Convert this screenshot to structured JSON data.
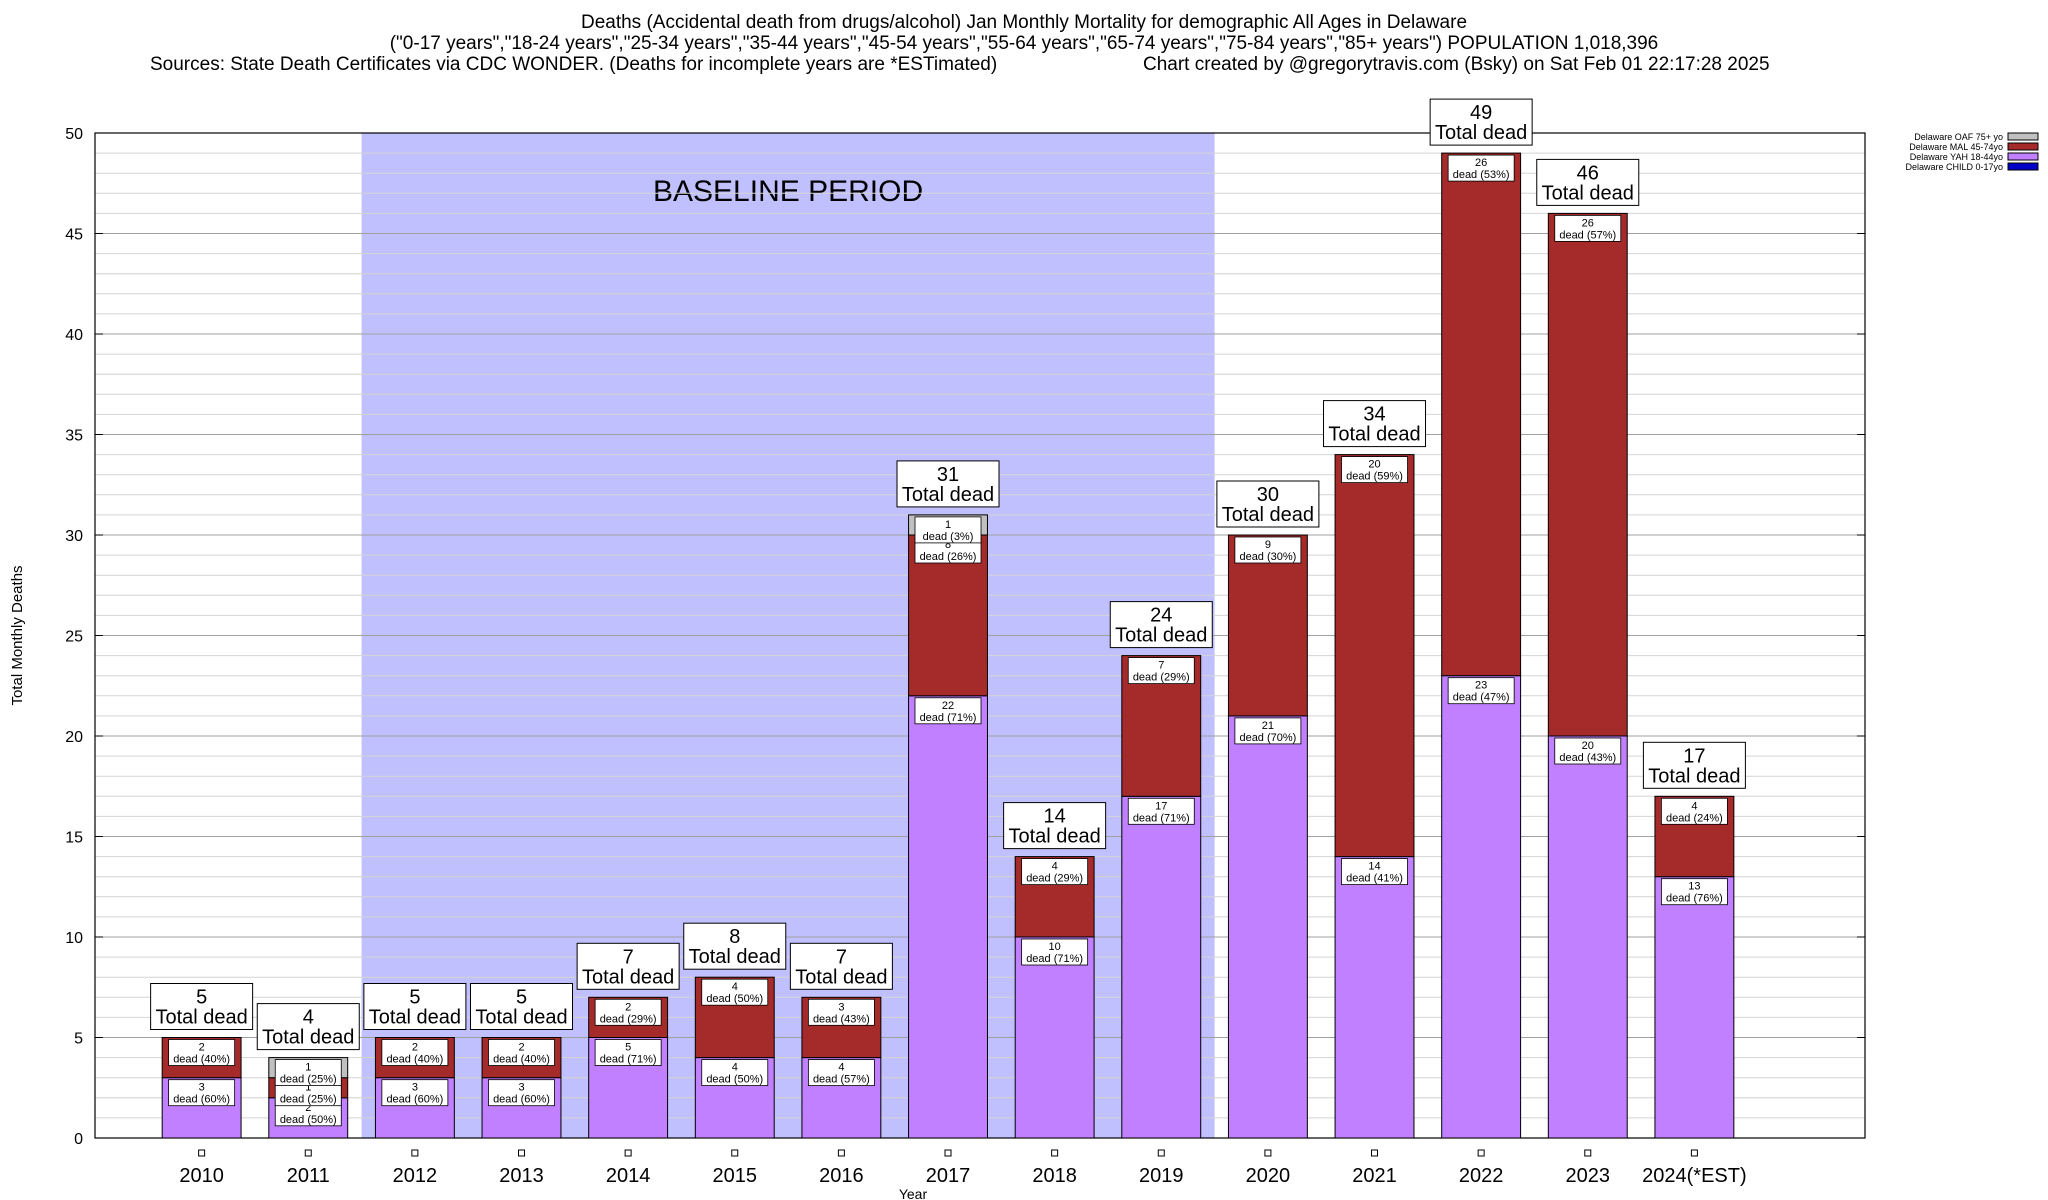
{
  "header": {
    "title_line1": "Deaths (Accidental death from drugs/alcohol) Jan Monthly Mortality for demographic All Ages in Delaware",
    "title_line2": "(\"0-17 years\",\"18-24 years\",\"25-34 years\",\"35-44 years\",\"45-54 years\",\"55-64 years\",\"65-74 years\",\"75-84 years\",\"85+ years\") POPULATION 1,018,396",
    "sources": "Sources: State Death Certificates via CDC WONDER. (Deaths for incomplete years are *ESTimated)",
    "credit": "Chart created by @gregorytravis.com (Bsky) on Sat Feb 01 22:17:28 2025"
  },
  "chart_data": {
    "type": "bar",
    "stacked": true,
    "title": "Deaths (Accidental death from drugs/alcohol) Jan Monthly Mortality for demographic All Ages in Delaware",
    "xlabel": "Year",
    "ylabel": "Total Monthly Deaths",
    "ylim": [
      0,
      50
    ],
    "yticks": [
      0,
      5,
      10,
      15,
      20,
      25,
      30,
      35,
      40,
      45,
      50
    ],
    "grid": true,
    "legend_placement": "top-right",
    "categories": [
      "2010",
      "2011",
      "2012",
      "2013",
      "2014",
      "2015",
      "2016",
      "2017",
      "2018",
      "2019",
      "2020",
      "2021",
      "2022",
      "2023",
      "2024(*EST)"
    ],
    "series": [
      {
        "name": "Delaware CHILD 0-17yo",
        "color": "#0000c8",
        "values": [
          0,
          0,
          0,
          0,
          0,
          0,
          0,
          0,
          0,
          0,
          0,
          0,
          0,
          0,
          0
        ]
      },
      {
        "name": "Delaware YAH 18-44yo",
        "color": "#c080ff",
        "values": [
          3,
          2,
          3,
          3,
          5,
          4,
          4,
          22,
          10,
          17,
          21,
          14,
          23,
          20,
          13
        ],
        "labels": [
          "dead (60%)",
          "dead (50%)",
          "dead (60%)",
          "dead (60%)",
          "dead (71%)",
          "dead (50%)",
          "dead (57%)",
          "dead (71%)",
          "dead (71%)",
          "dead (71%)",
          "dead (70%)",
          "dead (41%)",
          "dead (47%)",
          "dead (43%)",
          "dead (76%)"
        ]
      },
      {
        "name": "Delaware MAL 45-74yo",
        "color": "#a52a2a",
        "values": [
          2,
          1,
          2,
          2,
          2,
          4,
          3,
          8,
          4,
          7,
          9,
          20,
          26,
          26,
          4
        ],
        "labels": [
          "dead (40%)",
          "dead (25%)",
          "dead (40%)",
          "dead (40%)",
          "dead (29%)",
          "dead (50%)",
          "dead (43%)",
          "dead (26%)",
          "dead (29%)",
          "dead (29%)",
          "dead (30%)",
          "dead (59%)",
          "dead (53%)",
          "dead (57%)",
          "dead (24%)"
        ]
      },
      {
        "name": "Delaware OAF 75+ yo",
        "color": "#c0c0c0",
        "values": [
          0,
          1,
          0,
          0,
          0,
          0,
          0,
          1,
          0,
          0,
          0,
          0,
          0,
          0,
          0
        ],
        "labels": [
          "",
          "dead (25%)",
          "",
          "",
          "",
          "",
          "",
          "dead (3%)",
          "",
          "",
          "",
          "",
          "",
          "",
          ""
        ]
      }
    ],
    "totals": [
      5,
      4,
      5,
      5,
      7,
      8,
      7,
      31,
      14,
      24,
      30,
      34,
      49,
      46,
      17
    ],
    "total_label": "Total dead",
    "baseline": {
      "label": "BASELINE PERIOD",
      "from": "2012",
      "to": "2019",
      "color": "#c0c0ff"
    }
  }
}
